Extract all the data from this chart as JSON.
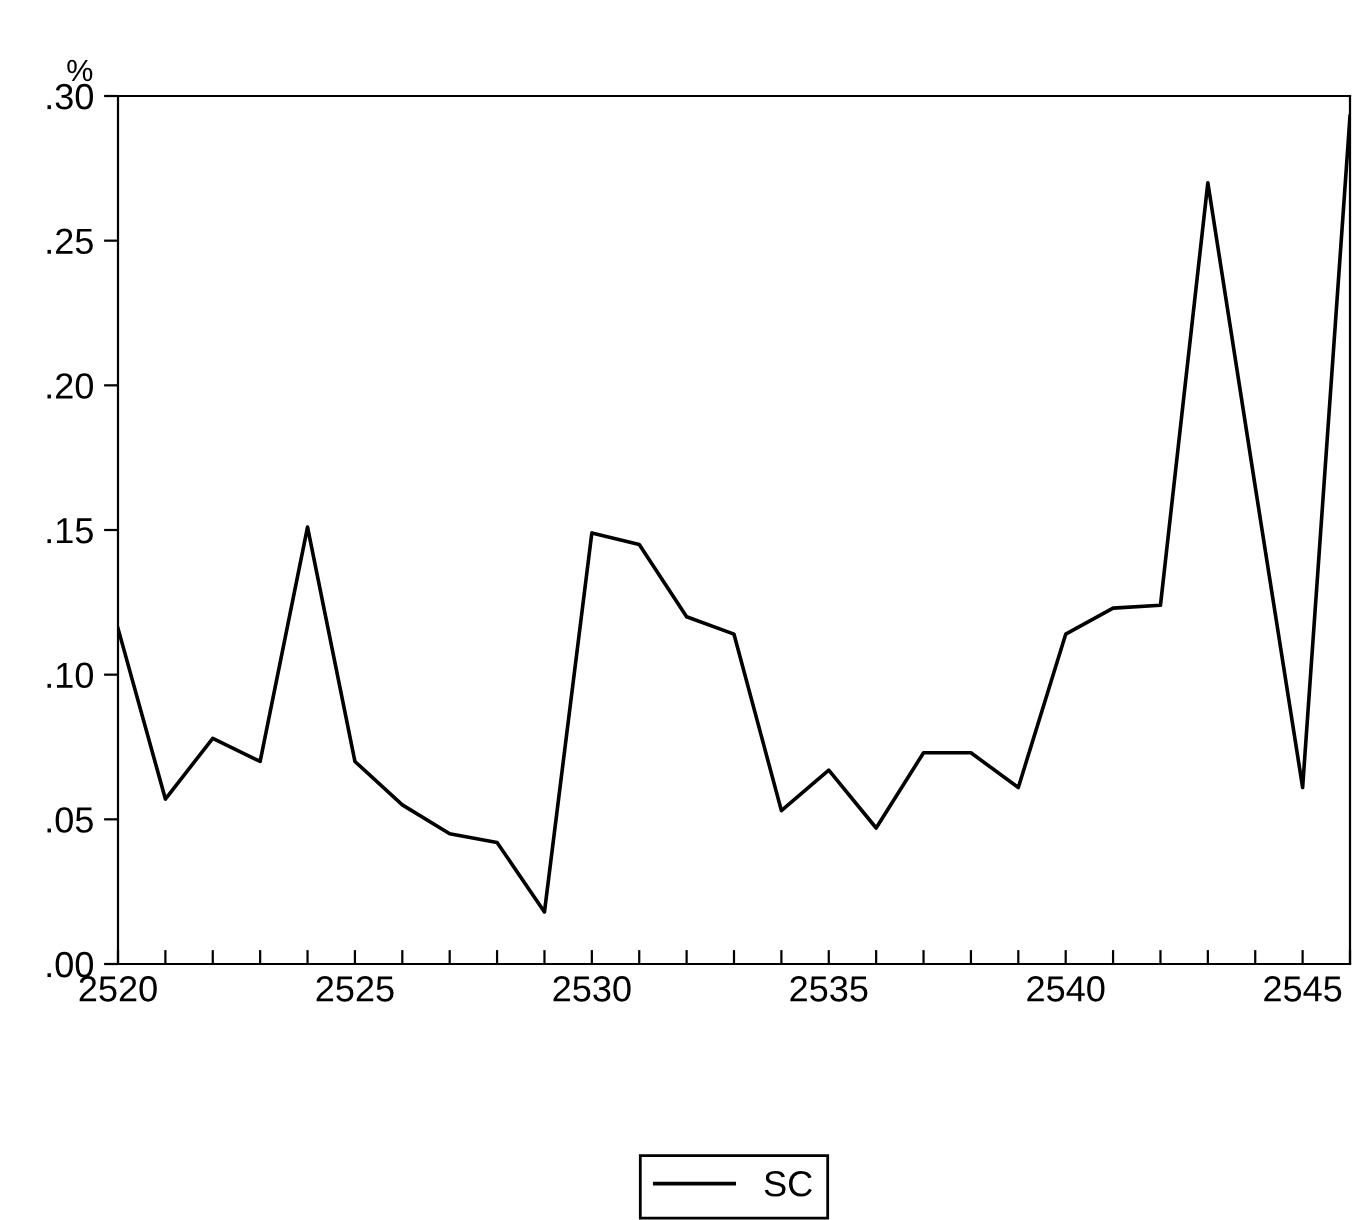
{
  "chart_data": {
    "type": "line",
    "ylabel": "%",
    "x": [
      2520,
      2521,
      2522,
      2523,
      2524,
      2525,
      2526,
      2527,
      2528,
      2529,
      2530,
      2531,
      2532,
      2533,
      2534,
      2535,
      2536,
      2537,
      2538,
      2539,
      2540,
      2541,
      2542,
      2543,
      2544,
      2545,
      2546
    ],
    "series": [
      {
        "name": "SC",
        "color": "#000000",
        "values": [
          0.116,
          0.057,
          0.078,
          0.07,
          0.151,
          0.07,
          0.055,
          0.045,
          0.042,
          0.018,
          0.149,
          0.145,
          0.12,
          0.114,
          0.053,
          0.067,
          0.047,
          0.073,
          0.073,
          0.061,
          0.114,
          0.123,
          0.124,
          0.27,
          0.165,
          0.061,
          0.293
        ]
      }
    ],
    "xlim": [
      2520,
      2546
    ],
    "xticks": [
      2520,
      {
        "value": 2521,
        "label": null
      },
      {
        "value": 2522,
        "label": null
      },
      {
        "value": 2523,
        "label": null
      },
      {
        "value": 2524,
        "label": null
      },
      2525,
      {
        "value": 2526,
        "label": null
      },
      {
        "value": 2527,
        "label": null
      },
      {
        "value": 2528,
        "label": null
      },
      {
        "value": 2529,
        "label": null
      },
      2530,
      {
        "value": 2531,
        "label": null
      },
      {
        "value": 2532,
        "label": null
      },
      {
        "value": 2533,
        "label": null
      },
      {
        "value": 2534,
        "label": null
      },
      2535,
      {
        "value": 2536,
        "label": null
      },
      {
        "value": 2537,
        "label": null
      },
      {
        "value": 2538,
        "label": null
      },
      {
        "value": 2539,
        "label": null
      },
      2540,
      {
        "value": 2541,
        "label": null
      },
      {
        "value": 2542,
        "label": null
      },
      {
        "value": 2543,
        "label": null
      },
      {
        "value": 2544,
        "label": null
      },
      2545,
      {
        "value": 2546,
        "label": null
      }
    ],
    "ylim": [
      0,
      0.3
    ],
    "yticks": [
      {
        "value": 0,
        "label": ".00"
      },
      {
        "value": 0.05,
        "label": ".05"
      },
      {
        "value": 0.1,
        "label": ".10"
      },
      {
        "value": 0.15,
        "label": ".15"
      },
      {
        "value": 0.2,
        "label": ".20"
      },
      {
        "value": 0.25,
        "label": ".25"
      },
      {
        "value": 0.3,
        "label": ".30"
      }
    ],
    "grid": false,
    "legend": "bottom",
    "marker": "none",
    "line_style": "solid"
  }
}
